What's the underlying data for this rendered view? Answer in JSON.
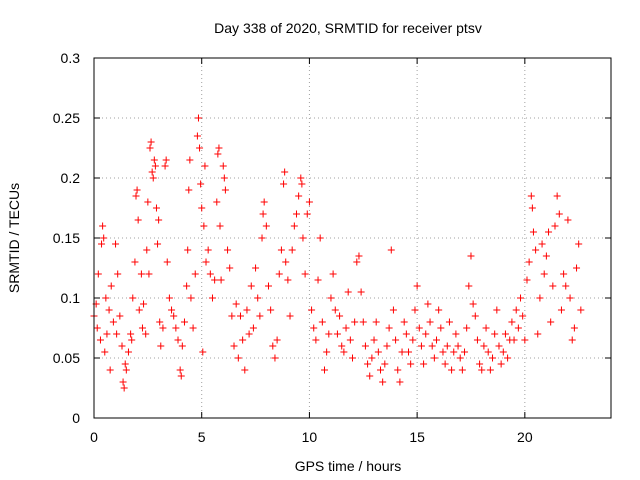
{
  "chart_data": {
    "type": "scatter",
    "title": "Day 338 of 2020, SRMTID for receiver ptsv",
    "xlabel": "GPS time / hours",
    "ylabel": "SRMTID / TECUs",
    "xlim": [
      0,
      24
    ],
    "ylim": [
      0,
      0.3
    ],
    "xticks": [
      0,
      5,
      10,
      15,
      20
    ],
    "xtick_labels": [
      "0",
      "5",
      "10",
      "15",
      "20"
    ],
    "yticks": [
      0,
      0.05,
      0.1,
      0.15,
      0.2,
      0.25,
      0.3
    ],
    "ytick_labels": [
      "0",
      "0.05",
      "0.1",
      "0.15",
      "0.2",
      "0.25",
      "0.3"
    ],
    "grid": true,
    "marker": "plus",
    "color": "#ff0000",
    "series": [
      {
        "name": "SRMTID",
        "points": [
          [
            0.0,
            0.085
          ],
          [
            0.1,
            0.095
          ],
          [
            0.15,
            0.075
          ],
          [
            0.2,
            0.12
          ],
          [
            0.3,
            0.065
          ],
          [
            0.35,
            0.145
          ],
          [
            0.4,
            0.16
          ],
          [
            0.45,
            0.15
          ],
          [
            0.5,
            0.055
          ],
          [
            0.55,
            0.1
          ],
          [
            0.6,
            0.07
          ],
          [
            0.7,
            0.09
          ],
          [
            0.75,
            0.04
          ],
          [
            0.8,
            0.11
          ],
          [
            0.9,
            0.08
          ],
          [
            1.0,
            0.145
          ],
          [
            1.05,
            0.07
          ],
          [
            1.1,
            0.12
          ],
          [
            1.2,
            0.085
          ],
          [
            1.3,
            0.06
          ],
          [
            1.35,
            0.03
          ],
          [
            1.4,
            0.025
          ],
          [
            1.45,
            0.045
          ],
          [
            1.5,
            0.04
          ],
          [
            1.6,
            0.055
          ],
          [
            1.7,
            0.07
          ],
          [
            1.75,
            0.065
          ],
          [
            1.8,
            0.1
          ],
          [
            1.9,
            0.13
          ],
          [
            1.95,
            0.185
          ],
          [
            2.0,
            0.19
          ],
          [
            2.05,
            0.165
          ],
          [
            2.1,
            0.09
          ],
          [
            2.2,
            0.12
          ],
          [
            2.25,
            0.075
          ],
          [
            2.3,
            0.095
          ],
          [
            2.4,
            0.07
          ],
          [
            2.45,
            0.14
          ],
          [
            2.5,
            0.18
          ],
          [
            2.55,
            0.12
          ],
          [
            2.6,
            0.225
          ],
          [
            2.65,
            0.23
          ],
          [
            2.7,
            0.205
          ],
          [
            2.75,
            0.2
          ],
          [
            2.8,
            0.215
          ],
          [
            2.85,
            0.21
          ],
          [
            2.9,
            0.175
          ],
          [
            2.95,
            0.145
          ],
          [
            3.0,
            0.165
          ],
          [
            3.05,
            0.08
          ],
          [
            3.1,
            0.06
          ],
          [
            3.2,
            0.075
          ],
          [
            3.3,
            0.21
          ],
          [
            3.35,
            0.215
          ],
          [
            3.4,
            0.13
          ],
          [
            3.5,
            0.1
          ],
          [
            3.6,
            0.09
          ],
          [
            3.7,
            0.085
          ],
          [
            3.8,
            0.075
          ],
          [
            3.9,
            0.065
          ],
          [
            4.0,
            0.04
          ],
          [
            4.05,
            0.035
          ],
          [
            4.1,
            0.06
          ],
          [
            4.2,
            0.08
          ],
          [
            4.3,
            0.11
          ],
          [
            4.35,
            0.14
          ],
          [
            4.4,
            0.19
          ],
          [
            4.45,
            0.215
          ],
          [
            4.5,
            0.1
          ],
          [
            4.6,
            0.075
          ],
          [
            4.7,
            0.12
          ],
          [
            4.8,
            0.235
          ],
          [
            4.85,
            0.25
          ],
          [
            4.9,
            0.225
          ],
          [
            4.95,
            0.195
          ],
          [
            5.0,
            0.175
          ],
          [
            5.05,
            0.055
          ],
          [
            5.1,
            0.16
          ],
          [
            5.15,
            0.21
          ],
          [
            5.2,
            0.13
          ],
          [
            5.3,
            0.14
          ],
          [
            5.4,
            0.12
          ],
          [
            5.5,
            0.1
          ],
          [
            5.6,
            0.115
          ],
          [
            5.7,
            0.18
          ],
          [
            5.75,
            0.22
          ],
          [
            5.8,
            0.225
          ],
          [
            5.85,
            0.16
          ],
          [
            5.9,
            0.115
          ],
          [
            6.0,
            0.21
          ],
          [
            6.05,
            0.2
          ],
          [
            6.1,
            0.19
          ],
          [
            6.2,
            0.14
          ],
          [
            6.3,
            0.125
          ],
          [
            6.4,
            0.085
          ],
          [
            6.5,
            0.06
          ],
          [
            6.6,
            0.095
          ],
          [
            6.7,
            0.05
          ],
          [
            6.8,
            0.085
          ],
          [
            6.9,
            0.065
          ],
          [
            7.0,
            0.04
          ],
          [
            7.1,
            0.09
          ],
          [
            7.2,
            0.07
          ],
          [
            7.3,
            0.11
          ],
          [
            7.4,
            0.075
          ],
          [
            7.5,
            0.125
          ],
          [
            7.6,
            0.1
          ],
          [
            7.7,
            0.085
          ],
          [
            7.8,
            0.15
          ],
          [
            7.85,
            0.17
          ],
          [
            7.9,
            0.18
          ],
          [
            8.0,
            0.16
          ],
          [
            8.1,
            0.11
          ],
          [
            8.2,
            0.09
          ],
          [
            8.3,
            0.06
          ],
          [
            8.4,
            0.05
          ],
          [
            8.5,
            0.065
          ],
          [
            8.6,
            0.12
          ],
          [
            8.7,
            0.14
          ],
          [
            8.8,
            0.195
          ],
          [
            8.85,
            0.205
          ],
          [
            8.9,
            0.13
          ],
          [
            9.0,
            0.115
          ],
          [
            9.1,
            0.085
          ],
          [
            9.2,
            0.14
          ],
          [
            9.3,
            0.16
          ],
          [
            9.4,
            0.17
          ],
          [
            9.5,
            0.185
          ],
          [
            9.6,
            0.2
          ],
          [
            9.65,
            0.195
          ],
          [
            9.7,
            0.15
          ],
          [
            9.8,
            0.12
          ],
          [
            9.9,
            0.17
          ],
          [
            10.0,
            0.18
          ],
          [
            10.1,
            0.09
          ],
          [
            10.2,
            0.075
          ],
          [
            10.3,
            0.065
          ],
          [
            10.4,
            0.115
          ],
          [
            10.5,
            0.15
          ],
          [
            10.6,
            0.08
          ],
          [
            10.7,
            0.04
          ],
          [
            10.8,
            0.055
          ],
          [
            10.9,
            0.07
          ],
          [
            11.0,
            0.1
          ],
          [
            11.1,
            0.12
          ],
          [
            11.2,
            0.09
          ],
          [
            11.3,
            0.07
          ],
          [
            11.4,
            0.085
          ],
          [
            11.5,
            0.06
          ],
          [
            11.6,
            0.055
          ],
          [
            11.7,
            0.075
          ],
          [
            11.8,
            0.105
          ],
          [
            11.9,
            0.065
          ],
          [
            12.0,
            0.05
          ],
          [
            12.1,
            0.08
          ],
          [
            12.2,
            0.13
          ],
          [
            12.3,
            0.135
          ],
          [
            12.4,
            0.105
          ],
          [
            12.5,
            0.08
          ],
          [
            12.6,
            0.06
          ],
          [
            12.7,
            0.045
          ],
          [
            12.8,
            0.035
          ],
          [
            12.9,
            0.05
          ],
          [
            13.0,
            0.065
          ],
          [
            13.1,
            0.08
          ],
          [
            13.2,
            0.055
          ],
          [
            13.3,
            0.04
          ],
          [
            13.4,
            0.03
          ],
          [
            13.5,
            0.045
          ],
          [
            13.6,
            0.06
          ],
          [
            13.7,
            0.075
          ],
          [
            13.8,
            0.14
          ],
          [
            13.9,
            0.09
          ],
          [
            14.0,
            0.065
          ],
          [
            14.1,
            0.04
          ],
          [
            14.2,
            0.03
          ],
          [
            14.3,
            0.055
          ],
          [
            14.4,
            0.08
          ],
          [
            14.5,
            0.07
          ],
          [
            14.6,
            0.055
          ],
          [
            14.7,
            0.045
          ],
          [
            14.8,
            0.065
          ],
          [
            14.9,
            0.09
          ],
          [
            15.0,
            0.11
          ],
          [
            15.1,
            0.075
          ],
          [
            15.2,
            0.06
          ],
          [
            15.3,
            0.045
          ],
          [
            15.4,
            0.07
          ],
          [
            15.5,
            0.095
          ],
          [
            15.6,
            0.08
          ],
          [
            15.7,
            0.06
          ],
          [
            15.8,
            0.05
          ],
          [
            15.9,
            0.065
          ],
          [
            16.0,
            0.09
          ],
          [
            16.1,
            0.075
          ],
          [
            16.2,
            0.055
          ],
          [
            16.3,
            0.045
          ],
          [
            16.4,
            0.06
          ],
          [
            16.5,
            0.08
          ],
          [
            16.6,
            0.04
          ],
          [
            16.7,
            0.055
          ],
          [
            16.8,
            0.07
          ],
          [
            16.9,
            0.06
          ],
          [
            17.0,
            0.05
          ],
          [
            17.1,
            0.04
          ],
          [
            17.2,
            0.055
          ],
          [
            17.3,
            0.075
          ],
          [
            17.4,
            0.11
          ],
          [
            17.5,
            0.135
          ],
          [
            17.6,
            0.095
          ],
          [
            17.7,
            0.085
          ],
          [
            17.8,
            0.065
          ],
          [
            17.9,
            0.045
          ],
          [
            18.0,
            0.04
          ],
          [
            18.1,
            0.06
          ],
          [
            18.2,
            0.075
          ],
          [
            18.3,
            0.055
          ],
          [
            18.4,
            0.04
          ],
          [
            18.5,
            0.05
          ],
          [
            18.6,
            0.07
          ],
          [
            18.7,
            0.09
          ],
          [
            18.8,
            0.06
          ],
          [
            18.9,
            0.045
          ],
          [
            19.0,
            0.055
          ],
          [
            19.1,
            0.07
          ],
          [
            19.2,
            0.05
          ],
          [
            19.3,
            0.065
          ],
          [
            19.4,
            0.08
          ],
          [
            19.5,
            0.065
          ],
          [
            19.6,
            0.09
          ],
          [
            19.7,
            0.075
          ],
          [
            19.8,
            0.1
          ],
          [
            19.9,
            0.085
          ],
          [
            20.0,
            0.065
          ],
          [
            20.1,
            0.115
          ],
          [
            20.2,
            0.13
          ],
          [
            20.3,
            0.185
          ],
          [
            20.35,
            0.175
          ],
          [
            20.4,
            0.155
          ],
          [
            20.5,
            0.14
          ],
          [
            20.6,
            0.07
          ],
          [
            20.7,
            0.1
          ],
          [
            20.8,
            0.145
          ],
          [
            20.9,
            0.12
          ],
          [
            21.0,
            0.135
          ],
          [
            21.1,
            0.155
          ],
          [
            21.2,
            0.08
          ],
          [
            21.3,
            0.11
          ],
          [
            21.4,
            0.16
          ],
          [
            21.5,
            0.185
          ],
          [
            21.6,
            0.17
          ],
          [
            21.7,
            0.09
          ],
          [
            21.8,
            0.12
          ],
          [
            21.9,
            0.11
          ],
          [
            22.0,
            0.165
          ],
          [
            22.1,
            0.1
          ],
          [
            22.2,
            0.065
          ],
          [
            22.3,
            0.075
          ],
          [
            22.4,
            0.125
          ],
          [
            22.5,
            0.145
          ],
          [
            22.6,
            0.09
          ]
        ]
      }
    ]
  }
}
